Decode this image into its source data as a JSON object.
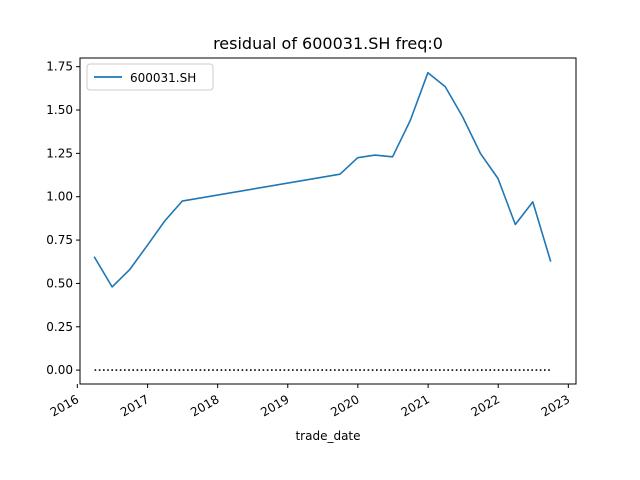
{
  "chart_data": {
    "type": "line",
    "title": "residual of 600031.SH freq:0",
    "xlabel": "trade_date",
    "ylabel": "",
    "x_tick_labels": [
      "2016",
      "2017",
      "2018",
      "2019",
      "2020",
      "2021",
      "2022",
      "2023"
    ],
    "y_tick_labels": [
      "0.00",
      "0.25",
      "0.50",
      "0.75",
      "1.00",
      "1.25",
      "1.50",
      "1.75"
    ],
    "y_ticks": [
      0,
      0.25,
      0.5,
      0.75,
      1.0,
      1.25,
      1.5,
      1.75
    ],
    "xlim": [
      "2016-01-15",
      "2023-02-10"
    ],
    "ylim": [
      -0.08,
      1.8
    ],
    "grid": false,
    "legend": {
      "location": "upper left",
      "entries": [
        "600031.SH"
      ]
    },
    "series": [
      {
        "name": "600031.SH",
        "color": "#1f77b4",
        "style": "solid",
        "x": [
          "2016-03-31",
          "2016-06-30",
          "2016-09-30",
          "2016-12-31",
          "2017-03-31",
          "2017-06-30",
          "2019-09-30",
          "2019-12-31",
          "2020-03-31",
          "2020-06-30",
          "2020-09-30",
          "2020-12-31",
          "2021-03-31",
          "2021-06-30",
          "2021-09-30",
          "2021-12-31",
          "2022-03-31",
          "2022-06-30",
          "2022-09-30"
        ],
        "values": [
          0.65,
          0.48,
          0.58,
          0.72,
          0.86,
          0.975,
          1.13,
          1.225,
          1.24,
          1.23,
          1.44,
          1.715,
          1.635,
          1.46,
          1.25,
          1.105,
          0.84,
          0.97,
          0.63
        ]
      },
      {
        "name": "",
        "color": "#000000",
        "style": "dotted",
        "x": [
          "2016-03-31",
          "2022-09-30"
        ],
        "values": [
          0,
          0
        ]
      }
    ]
  }
}
